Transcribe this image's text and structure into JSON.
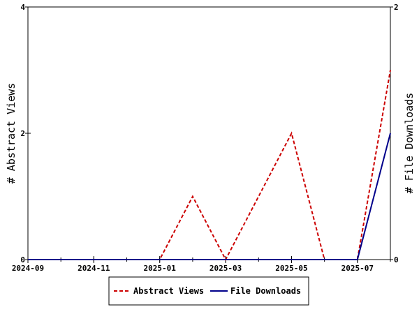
{
  "chart_data": {
    "type": "line",
    "title": "",
    "x_axis": {
      "ticks": [
        "2024-09",
        "2024-11",
        "2025-01",
        "2025-03",
        "2025-05",
        "2025-07"
      ],
      "range": [
        "2024-09",
        "2025-08"
      ]
    },
    "y_left": {
      "label": "# Abstract Views",
      "ticks": [
        "0",
        "2",
        "4"
      ],
      "range": [
        0,
        4
      ]
    },
    "y_right": {
      "label": "# File Downloads",
      "ticks": [
        "0",
        "2"
      ],
      "range": [
        0,
        2
      ]
    },
    "x": [
      "2024-09",
      "2024-10",
      "2024-11",
      "2024-12",
      "2025-01",
      "2025-02",
      "2025-03",
      "2025-04",
      "2025-05",
      "2025-06",
      "2025-07",
      "2025-08"
    ],
    "series": [
      {
        "name": "Abstract Views",
        "axis": "left",
        "color": "#cc0000",
        "style": "dashed",
        "values": [
          0,
          0,
          0,
          0,
          0,
          1,
          0,
          1,
          2,
          0,
          0,
          3
        ]
      },
      {
        "name": "File Downloads",
        "axis": "right",
        "color": "#00008b",
        "style": "solid",
        "values": [
          0,
          0,
          0,
          0,
          0,
          0,
          0,
          0,
          0,
          0,
          0,
          1
        ]
      }
    ],
    "grid": false,
    "legend_position": "bottom"
  }
}
